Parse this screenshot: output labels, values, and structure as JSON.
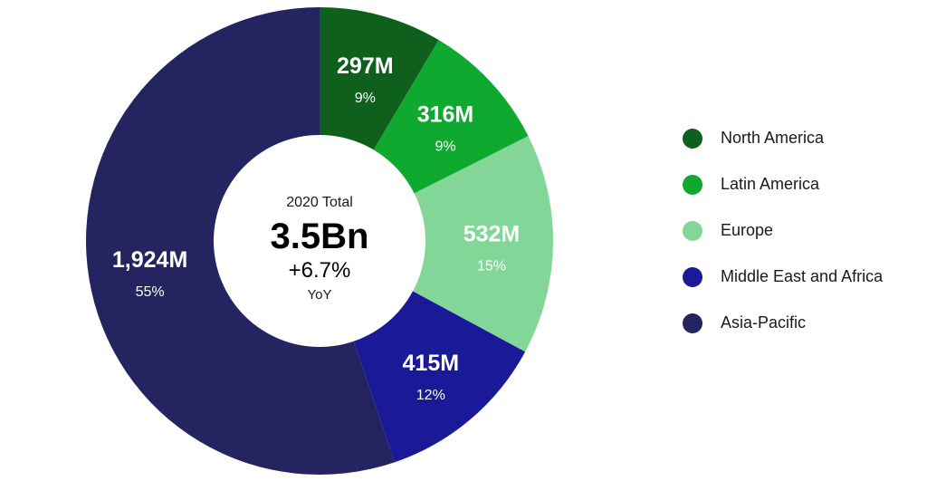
{
  "chart_data": {
    "type": "pie",
    "variant": "donut",
    "center": {
      "label": "2020 Total",
      "total": "3.5Bn",
      "change": "+6.7%",
      "change_unit": "YoY"
    },
    "slices": [
      {
        "name": "North America",
        "value": 297,
        "value_label": "297M",
        "percent_label": "9%",
        "color": "#0f5f1d"
      },
      {
        "name": "Latin America",
        "value": 316,
        "value_label": "316M",
        "percent_label": "9%",
        "color": "#0ea92e"
      },
      {
        "name": "Europe",
        "value": 532,
        "value_label": "532M",
        "percent_label": "15%",
        "color": "#82d697"
      },
      {
        "name": "Middle East and Africa",
        "value": 415,
        "value_label": "415M",
        "percent_label": "12%",
        "color": "#1a1a99"
      },
      {
        "name": "Asia-Pacific",
        "value": 1924,
        "value_label": "1,924M",
        "percent_label": "55%",
        "color": "#232460"
      }
    ],
    "legend_position": "right"
  }
}
